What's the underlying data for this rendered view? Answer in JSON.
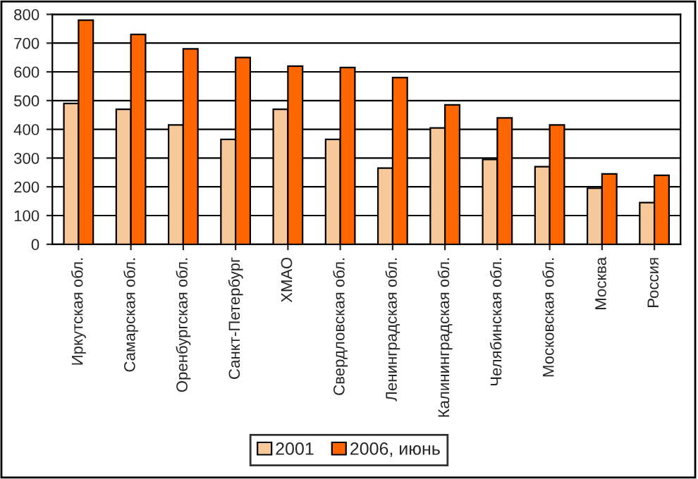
{
  "chart_data": {
    "type": "bar",
    "categories": [
      "Иркутская обл.",
      "Самарская обл.",
      "Оренбургская обл.",
      "Санкт-Петербург",
      "ХМАО",
      "Свердловская обл.",
      "Ленинградская обл.",
      "Калининградская обл.",
      "Челябинская обл.",
      "Московская обл.",
      "Москва",
      "Россия"
    ],
    "series": [
      {
        "name": "2001",
        "color": "#f7c89a",
        "values": [
          490,
          470,
          415,
          365,
          470,
          365,
          265,
          405,
          295,
          270,
          195,
          145
        ]
      },
      {
        "name": "2006, июнь",
        "color": "#ff6600",
        "values": [
          780,
          730,
          680,
          650,
          620,
          615,
          580,
          485,
          440,
          415,
          245,
          240
        ]
      }
    ],
    "ylim": [
      0,
      800
    ],
    "yticks": [
      0,
      100,
      200,
      300,
      400,
      500,
      600,
      700,
      800
    ],
    "grid": "y",
    "legend": "bottom"
  }
}
